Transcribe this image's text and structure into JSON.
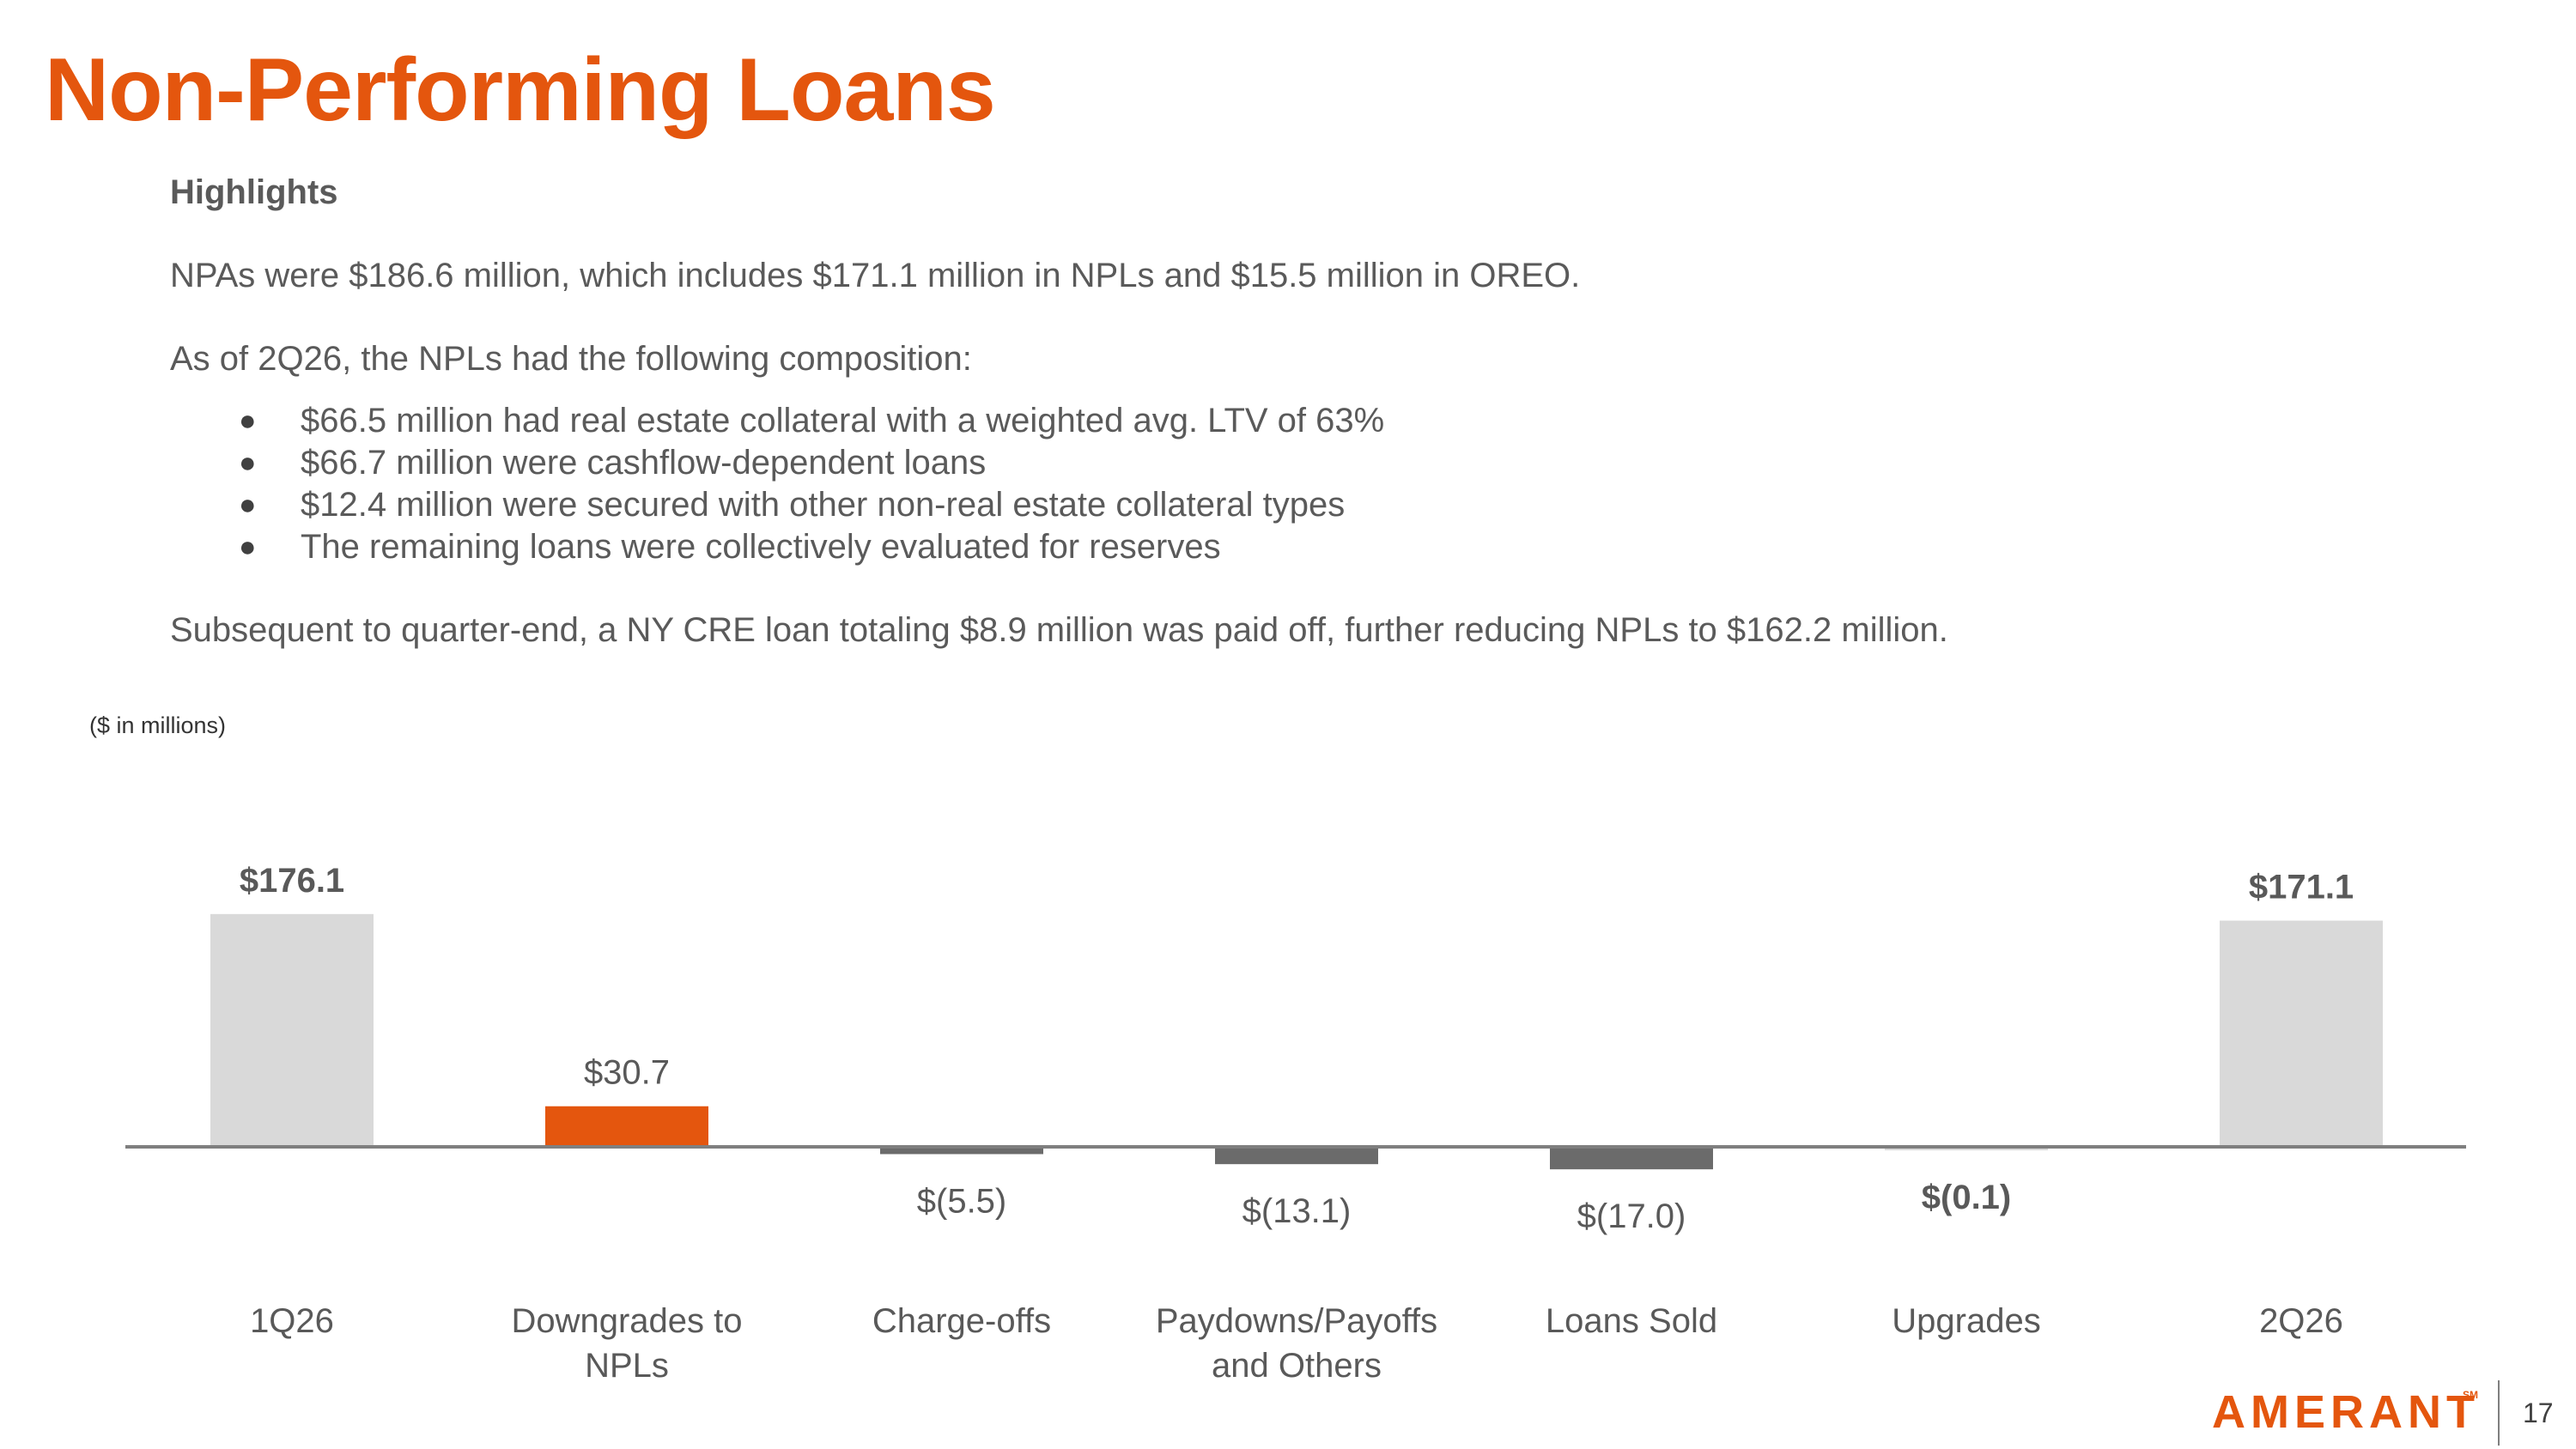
{
  "page": {
    "title": "Non-Performing Loans",
    "units_note": "($ in millions)",
    "page_number": "17"
  },
  "highlights": {
    "heading": "Highlights",
    "intro": "NPAs were $186.6 million, which includes $171.1 million in NPLs and $15.5 million in OREO.",
    "composition_lead": "As of 2Q26, the NPLs had the following composition:",
    "bullets": [
      "$66.5 million had real estate collateral with a weighted avg. LTV of 63%",
      "$66.7 million were cashflow-dependent loans",
      "$12.4 million were secured with other non-real estate collateral types",
      "The remaining loans were collectively evaluated for reserves"
    ],
    "subsequent": "Subsequent to quarter-end, a NY CRE loan totaling $8.9 million was paid off, further reducing NPLs to $162.2 million."
  },
  "logo": {
    "text": "AMERANT",
    "mark": "SM"
  },
  "colors": {
    "accent": "#e4560e",
    "total_bar": "#d9d9d9",
    "negative_bar": "#6b6b6b",
    "upgrade_bar": "#d9d9d9",
    "axis": "#7f7f7f",
    "text": "#595959"
  },
  "chart_data": {
    "type": "bar",
    "categories": [
      [
        "1Q26"
      ],
      [
        "Downgrades to",
        "NPLs"
      ],
      [
        "Charge-offs"
      ],
      [
        "Paydowns/Payoffs",
        "and Others"
      ],
      [
        "Loans Sold"
      ],
      [
        "Upgrades"
      ],
      [
        "2Q26"
      ]
    ],
    "values": [
      176.1,
      30.7,
      -5.5,
      -13.1,
      -17.0,
      -0.1,
      171.1
    ],
    "labels": [
      "$176.1",
      "$30.7",
      "$(5.5)",
      "$(13.1)",
      "$(17.0)",
      "$(0.1)",
      "$171.1"
    ],
    "kinds": [
      "total",
      "increase",
      "decrease",
      "decrease",
      "decrease",
      "decrease",
      "total"
    ],
    "bold_labels": [
      true,
      false,
      false,
      false,
      false,
      true,
      true
    ],
    "ylim": [
      -20,
      180
    ],
    "grid": false,
    "legend": "none"
  }
}
